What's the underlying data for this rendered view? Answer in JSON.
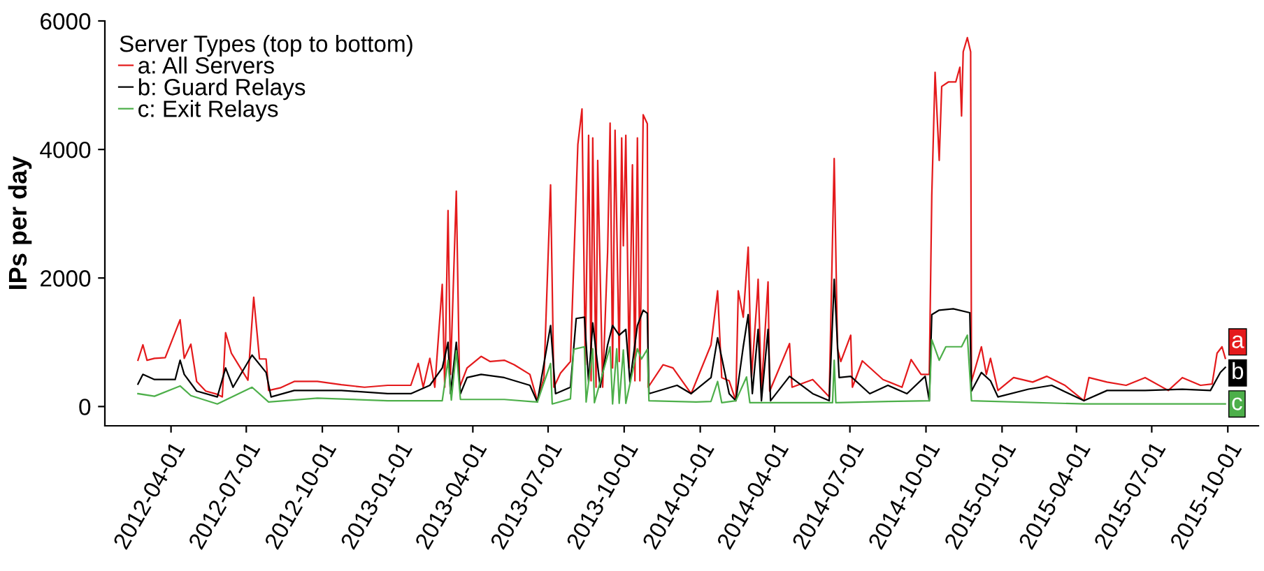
{
  "chart_data": {
    "type": "line",
    "ylabel": "IPs per day",
    "legend_title": "Server Types (top to bottom)",
    "legend": "top left",
    "grid": false,
    "xlim": [
      "2012-01-12",
      "2015-11-07"
    ],
    "ylim": [
      -300,
      6000
    ],
    "yticks": [
      0,
      2000,
      4000,
      6000
    ],
    "xticks": [
      "2012-04-01",
      "2012-07-01",
      "2012-10-01",
      "2013-01-01",
      "2013-04-01",
      "2013-07-01",
      "2013-10-01",
      "2014-01-01",
      "2014-04-01",
      "2014-07-01",
      "2014-10-01",
      "2015-01-01",
      "2015-04-01",
      "2015-07-01",
      "2015-10-01"
    ],
    "annotations": [
      "a",
      "b",
      "c"
    ],
    "series": [
      {
        "name": "a: All Servers",
        "color": "#e41a1c",
        "x": [
          "2012-02-21",
          "2012-02-27",
          "2012-03-03",
          "2012-03-12",
          "2012-03-25",
          "2012-04-12",
          "2012-04-17",
          "2012-04-25",
          "2012-05-02",
          "2012-05-13",
          "2012-05-27",
          "2012-06-02",
          "2012-06-06",
          "2012-06-13",
          "2012-07-03",
          "2012-07-10",
          "2012-07-17",
          "2012-07-25",
          "2012-07-28",
          "2012-08-11",
          "2012-08-28",
          "2012-09-25",
          "2012-10-24",
          "2012-11-21",
          "2012-12-19",
          "2013-01-16",
          "2013-01-25",
          "2013-01-31",
          "2013-02-08",
          "2013-02-14",
          "2013-02-23",
          "2013-02-26",
          "2013-03-02",
          "2013-03-05",
          "2013-03-12",
          "2013-03-16",
          "2013-03-25",
          "2013-04-11",
          "2013-04-22",
          "2013-05-09",
          "2013-05-21",
          "2013-06-09",
          "2013-06-18",
          "2013-06-26",
          "2013-07-04",
          "2013-07-08",
          "2013-07-16",
          "2013-07-28",
          "2013-08-06",
          "2013-08-11",
          "2013-08-15",
          "2013-08-19",
          "2013-08-22",
          "2013-08-24",
          "2013-08-28",
          "2013-08-30",
          "2013-09-05",
          "2013-09-11",
          "2013-09-14",
          "2013-09-17",
          "2013-09-20",
          "2013-09-25",
          "2013-09-28",
          "2013-09-30",
          "2013-10-03",
          "2013-10-07",
          "2013-10-11",
          "2013-10-14",
          "2013-10-17",
          "2013-10-20",
          "2013-10-24",
          "2013-10-29",
          "2013-10-30",
          "2013-11-17",
          "2013-11-29",
          "2013-12-21",
          "2014-01-14",
          "2014-01-22",
          "2014-01-27",
          "2014-02-05",
          "2014-02-13",
          "2014-02-16",
          "2014-02-22",
          "2014-02-28",
          "2014-03-04",
          "2014-03-11",
          "2014-03-12",
          "2014-03-16",
          "2014-03-24",
          "2014-03-26",
          "2014-04-19",
          "2014-04-22",
          "2014-05-17",
          "2014-06-06",
          "2014-06-12",
          "2014-06-16",
          "2014-06-20",
          "2014-07-02",
          "2014-07-04",
          "2014-07-16",
          "2014-08-10",
          "2014-09-02",
          "2014-09-13",
          "2014-09-25",
          "2014-10-05",
          "2014-10-08",
          "2014-10-12",
          "2014-10-17",
          "2014-10-20",
          "2014-10-28",
          "2014-11-06",
          "2014-11-11",
          "2014-11-13",
          "2014-11-15",
          "2014-11-20",
          "2014-11-24",
          "2014-11-25",
          "2014-12-07",
          "2014-12-13",
          "2014-12-18",
          "2014-12-27",
          "2015-01-15",
          "2015-02-07",
          "2015-02-24",
          "2015-03-18",
          "2015-04-10",
          "2015-04-16",
          "2015-05-08",
          "2015-05-31",
          "2015-06-23",
          "2015-07-21",
          "2015-08-07",
          "2015-08-29",
          "2015-09-12",
          "2015-09-18",
          "2015-09-24",
          "2015-09-28"
        ],
        "values": [
          720,
          960,
          720,
          750,
          760,
          1350,
          750,
          970,
          390,
          240,
          190,
          150,
          1150,
          830,
          410,
          1700,
          740,
          740,
          250,
          290,
          390,
          390,
          340,
          300,
          330,
          330,
          670,
          300,
          750,
          300,
          1900,
          300,
          3050,
          500,
          3350,
          300,
          600,
          780,
          700,
          720,
          650,
          500,
          90,
          450,
          3450,
          300,
          520,
          700,
          4080,
          4630,
          650,
          4220,
          400,
          4180,
          300,
          3830,
          300,
          2410,
          4410,
          600,
          4300,
          700,
          4180,
          2500,
          4220,
          600,
          3760,
          400,
          4180,
          400,
          4540,
          4400,
          300,
          650,
          600,
          200,
          960,
          1800,
          450,
          400,
          90,
          1800,
          1390,
          2480,
          450,
          1730,
          1980,
          240,
          1940,
          240,
          980,
          300,
          420,
          150,
          3860,
          900,
          700,
          1110,
          300,
          710,
          420,
          300,
          730,
          500,
          500,
          3280,
          5200,
          3830,
          4980,
          5050,
          5050,
          5280,
          4520,
          5520,
          5740,
          5520,
          390,
          930,
          500,
          750,
          250,
          450,
          380,
          470,
          330,
          90,
          450,
          380,
          330,
          450,
          250,
          450,
          330,
          350,
          830,
          930,
          750
        ]
      },
      {
        "name": "b: Guard Relays",
        "color": "#000000",
        "x": [
          "2012-02-21",
          "2012-02-27",
          "2012-03-12",
          "2012-04-06",
          "2012-04-12",
          "2012-04-17",
          "2012-05-02",
          "2012-05-27",
          "2012-06-06",
          "2012-06-15",
          "2012-07-08",
          "2012-07-25",
          "2012-07-31",
          "2012-08-28",
          "2012-10-24",
          "2012-12-19",
          "2013-01-16",
          "2013-02-08",
          "2013-02-23",
          "2013-03-02",
          "2013-03-05",
          "2013-03-12",
          "2013-03-17",
          "2013-03-25",
          "2013-04-11",
          "2013-05-09",
          "2013-06-09",
          "2013-06-18",
          "2013-07-04",
          "2013-07-10",
          "2013-07-28",
          "2013-08-04",
          "2013-08-14",
          "2013-08-19",
          "2013-08-24",
          "2013-09-02",
          "2013-09-11",
          "2013-09-17",
          "2013-09-25",
          "2013-10-03",
          "2013-10-08",
          "2013-10-17",
          "2013-10-24",
          "2013-10-29",
          "2013-10-31",
          "2013-12-04",
          "2013-12-21",
          "2014-01-14",
          "2014-01-22",
          "2014-02-05",
          "2014-02-13",
          "2014-02-22",
          "2014-02-28",
          "2014-03-05",
          "2014-03-12",
          "2014-03-16",
          "2014-03-24",
          "2014-03-27",
          "2014-04-19",
          "2014-05-17",
          "2014-06-06",
          "2014-06-12",
          "2014-06-18",
          "2014-07-02",
          "2014-07-25",
          "2014-08-16",
          "2014-09-08",
          "2014-09-30",
          "2014-10-05",
          "2014-10-08",
          "2014-10-17",
          "2014-11-03",
          "2014-11-23",
          "2014-11-25",
          "2014-12-07",
          "2014-12-18",
          "2014-12-27",
          "2015-02-02",
          "2015-03-02",
          "2015-04-10",
          "2015-05-08",
          "2015-06-23",
          "2015-08-07",
          "2015-09-10",
          "2015-09-22",
          "2015-09-28"
        ],
        "values": [
          350,
          500,
          420,
          420,
          720,
          500,
          240,
          150,
          600,
          300,
          800,
          530,
          150,
          250,
          250,
          200,
          200,
          330,
          600,
          1000,
          200,
          1000,
          200,
          450,
          500,
          450,
          330,
          70,
          1260,
          200,
          300,
          1370,
          1390,
          380,
          1300,
          300,
          960,
          1260,
          1110,
          1200,
          380,
          1260,
          1500,
          1450,
          200,
          330,
          200,
          450,
          1070,
          200,
          90,
          930,
          1430,
          200,
          1200,
          90,
          1200,
          90,
          470,
          200,
          90,
          1980,
          450,
          470,
          200,
          330,
          200,
          470,
          90,
          1430,
          1500,
          1520,
          1460,
          240,
          530,
          400,
          150,
          270,
          330,
          90,
          250,
          250,
          270,
          250,
          530,
          610
        ]
      },
      {
        "name": "c: Exit Relays",
        "color": "#4daf4a",
        "x": [
          "2012-02-21",
          "2012-03-12",
          "2012-04-12",
          "2012-04-25",
          "2012-05-27",
          "2012-07-08",
          "2012-07-28",
          "2012-09-25",
          "2012-12-19",
          "2013-02-23",
          "2013-03-02",
          "2013-03-06",
          "2013-03-12",
          "2013-03-17",
          "2013-05-09",
          "2013-06-18",
          "2013-07-04",
          "2013-07-06",
          "2013-07-28",
          "2013-08-01",
          "2013-08-14",
          "2013-08-16",
          "2013-08-24",
          "2013-08-26",
          "2013-09-14",
          "2013-09-17",
          "2013-09-22",
          "2013-09-25",
          "2013-09-30",
          "2013-10-03",
          "2013-10-17",
          "2013-10-22",
          "2013-10-29",
          "2013-10-31",
          "2013-12-27",
          "2014-01-14",
          "2014-01-22",
          "2014-01-27",
          "2014-02-13",
          "2014-02-26",
          "2014-03-02",
          "2014-05-17",
          "2014-06-10",
          "2014-06-12",
          "2014-06-14",
          "2014-08-16",
          "2014-10-05",
          "2014-10-08",
          "2014-10-17",
          "2014-10-25",
          "2014-11-13",
          "2014-11-20",
          "2014-11-25",
          "2015-04-10",
          "2015-09-28"
        ],
        "values": [
          200,
          160,
          320,
          170,
          40,
          300,
          70,
          130,
          90,
          90,
          720,
          100,
          870,
          110,
          110,
          70,
          670,
          40,
          120,
          890,
          930,
          70,
          900,
          60,
          930,
          40,
          900,
          50,
          880,
          50,
          900,
          740,
          890,
          90,
          70,
          80,
          390,
          60,
          90,
          460,
          60,
          60,
          60,
          720,
          60,
          80,
          90,
          1040,
          720,
          930,
          930,
          1110,
          90,
          40,
          40
        ]
      }
    ]
  }
}
